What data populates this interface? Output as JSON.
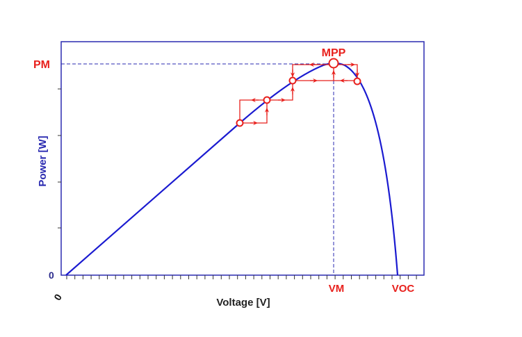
{
  "chart_data": {
    "type": "line",
    "xlabel": "Voltage [V]",
    "ylabel": "Power [W]",
    "x_origin_label": "0",
    "y_origin_label": "0",
    "x_markers": [
      "VM",
      "VOC"
    ],
    "y_markers": [
      "PM"
    ],
    "annotation": "MPP",
    "colors": {
      "curve": "#1a1ad0",
      "annotation": "#e8201c",
      "axis_text": "#2a2a8c"
    }
  }
}
